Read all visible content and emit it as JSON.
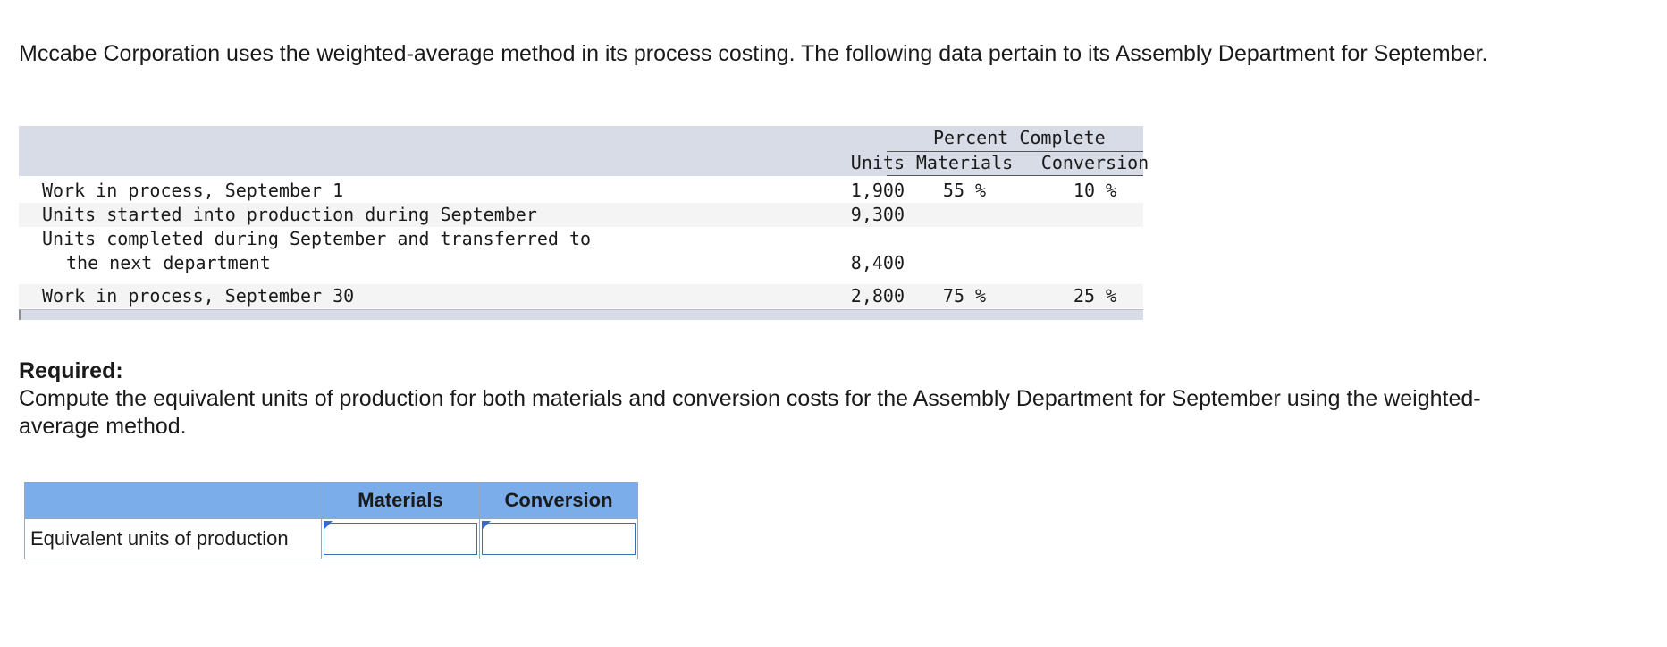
{
  "intro": "Mccabe Corporation uses the weighted-average method in its process costing. The following data pertain to its Assembly Department for September.",
  "data_table": {
    "percent_complete_header": "Percent Complete",
    "columns": {
      "units": "Units",
      "materials": "Materials",
      "conversion": "Conversion"
    },
    "rows": [
      {
        "label": "Work in process, September 1",
        "units": "1,900",
        "materials": "55 %",
        "conversion": "10 %"
      },
      {
        "label": "Units started into production during September",
        "units": "9,300",
        "materials": "",
        "conversion": ""
      },
      {
        "label": "Units completed during September and transferred to",
        "label_line2": "the next department",
        "units": "8,400",
        "materials": "",
        "conversion": ""
      },
      {
        "label": "Work in process, September 30",
        "units": "2,800",
        "materials": "75 %",
        "conversion": "25 %"
      }
    ]
  },
  "required": {
    "title": "Required:",
    "text": "Compute the equivalent units of production for both materials and conversion costs for the Assembly Department for September using the weighted-average method."
  },
  "answer_table": {
    "headers": {
      "blank": "",
      "materials": "Materials",
      "conversion": "Conversion"
    },
    "row_label": "Equivalent units of production",
    "materials_value": "",
    "conversion_value": ""
  },
  "colors": {
    "header_band": "#d8dce6",
    "answer_header": "#7badeb",
    "input_border": "#3d6fb5"
  }
}
